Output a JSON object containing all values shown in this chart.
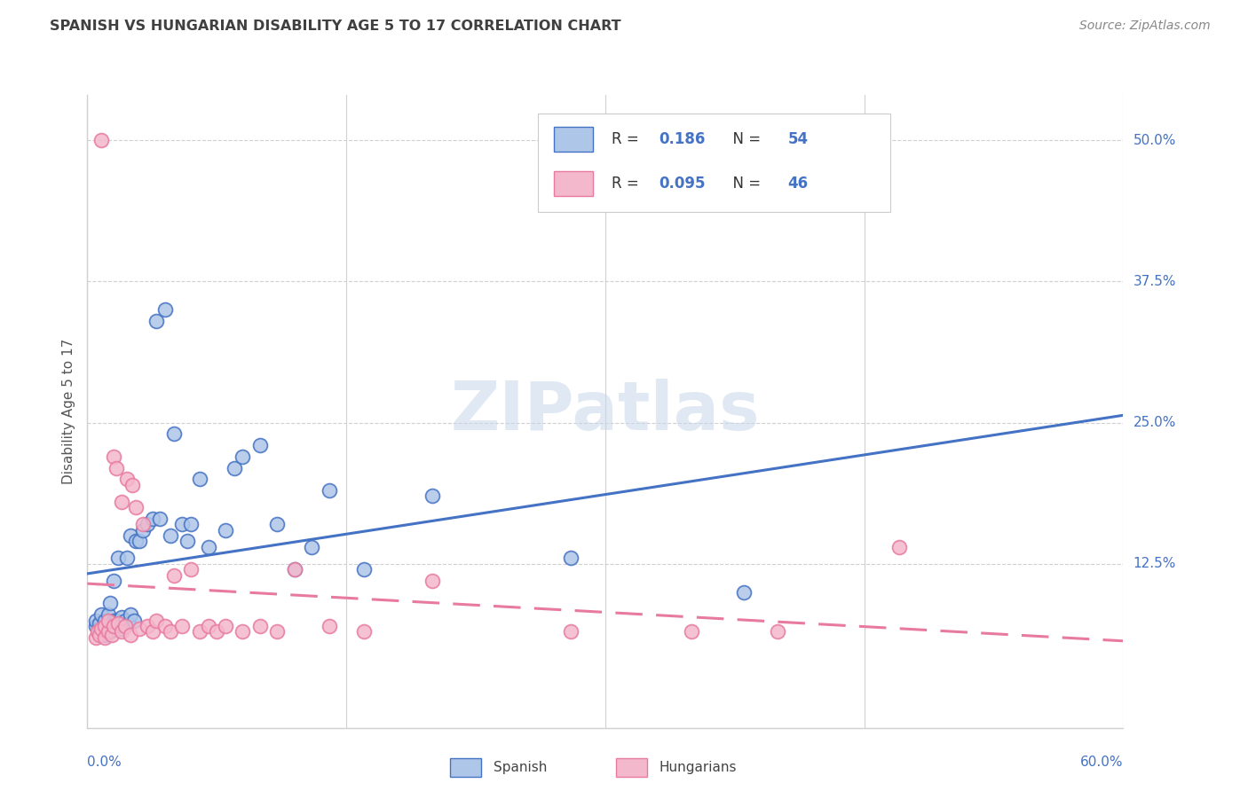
{
  "title": "SPANISH VS HUNGARIAN DISABILITY AGE 5 TO 17 CORRELATION CHART",
  "source": "Source: ZipAtlas.com",
  "ylabel": "Disability Age 5 to 17",
  "xlim": [
    0.0,
    0.6
  ],
  "ylim": [
    -0.02,
    0.54
  ],
  "background_color": "#ffffff",
  "watermark": "ZIPatlas",
  "spanish_color": "#aec6e8",
  "hungarian_color": "#f4b8cc",
  "trend_spanish_color": "#4472c4",
  "trend_hungarian_color": "#e87a9f",
  "axis_label_color": "#4472c4",
  "title_color": "#404040",
  "grid_color": "#d0d0d0",
  "spanish_x": [
    0.005,
    0.005,
    0.007,
    0.007,
    0.008,
    0.008,
    0.01,
    0.01,
    0.01,
    0.012,
    0.012,
    0.013,
    0.013,
    0.015,
    0.015,
    0.015,
    0.016,
    0.017,
    0.018,
    0.02,
    0.02,
    0.022,
    0.023,
    0.024,
    0.025,
    0.025,
    0.027,
    0.028,
    0.03,
    0.032,
    0.035,
    0.038,
    0.04,
    0.042,
    0.045,
    0.048,
    0.05,
    0.055,
    0.058,
    0.06,
    0.065,
    0.07,
    0.08,
    0.085,
    0.09,
    0.1,
    0.11,
    0.12,
    0.13,
    0.14,
    0.16,
    0.2,
    0.28,
    0.38
  ],
  "spanish_y": [
    0.07,
    0.075,
    0.068,
    0.072,
    0.065,
    0.08,
    0.062,
    0.068,
    0.075,
    0.07,
    0.08,
    0.065,
    0.09,
    0.068,
    0.075,
    0.11,
    0.07,
    0.075,
    0.13,
    0.068,
    0.078,
    0.075,
    0.13,
    0.072,
    0.08,
    0.15,
    0.075,
    0.145,
    0.145,
    0.155,
    0.16,
    0.165,
    0.34,
    0.165,
    0.35,
    0.15,
    0.24,
    0.16,
    0.145,
    0.16,
    0.2,
    0.14,
    0.155,
    0.21,
    0.22,
    0.23,
    0.16,
    0.12,
    0.14,
    0.19,
    0.12,
    0.185,
    0.13,
    0.1
  ],
  "hungarian_x": [
    0.005,
    0.006,
    0.007,
    0.008,
    0.008,
    0.01,
    0.01,
    0.012,
    0.012,
    0.014,
    0.015,
    0.015,
    0.017,
    0.018,
    0.02,
    0.02,
    0.022,
    0.023,
    0.025,
    0.026,
    0.028,
    0.03,
    0.032,
    0.035,
    0.038,
    0.04,
    0.045,
    0.048,
    0.05,
    0.055,
    0.06,
    0.065,
    0.07,
    0.075,
    0.08,
    0.09,
    0.1,
    0.11,
    0.12,
    0.14,
    0.16,
    0.2,
    0.28,
    0.35,
    0.4,
    0.47
  ],
  "hungarian_y": [
    0.06,
    0.065,
    0.062,
    0.068,
    0.5,
    0.06,
    0.07,
    0.065,
    0.075,
    0.062,
    0.22,
    0.07,
    0.21,
    0.072,
    0.065,
    0.18,
    0.07,
    0.2,
    0.062,
    0.195,
    0.175,
    0.068,
    0.16,
    0.07,
    0.065,
    0.075,
    0.07,
    0.065,
    0.115,
    0.07,
    0.12,
    0.065,
    0.07,
    0.065,
    0.07,
    0.065,
    0.07,
    0.065,
    0.12,
    0.07,
    0.065,
    0.11,
    0.065,
    0.065,
    0.065,
    0.14
  ]
}
